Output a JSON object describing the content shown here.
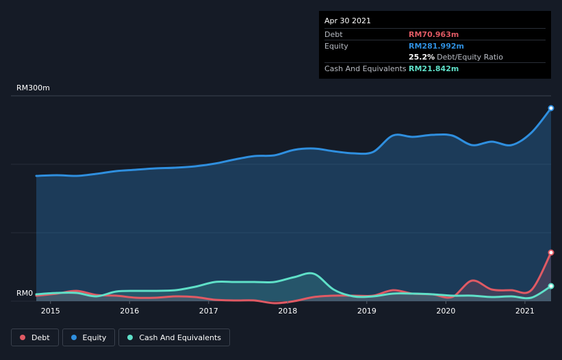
{
  "tooltip": {
    "date": "Apr 30 2021",
    "debt_label": "Debt",
    "debt_value": "RM70.963m",
    "equity_label": "Equity",
    "equity_value": "RM281.992m",
    "ratio_value": "25.2%",
    "ratio_label": "Debt/Equity Ratio",
    "cash_label": "Cash And Equivalents",
    "cash_value": "RM21.842m"
  },
  "colors": {
    "debt": "#e05a64",
    "equity": "#2f8fdf",
    "cash": "#5fe0c8"
  },
  "chart_data": {
    "type": "area",
    "title": "",
    "xlabel": "",
    "ylabel": "",
    "y_labels": {
      "top": "RM300m",
      "bottom": "RM0"
    },
    "ylim": [
      0,
      300
    ],
    "xlim": [
      2014.5,
      2021.33
    ],
    "x_ticks": [
      {
        "value": 2015,
        "label": "2015"
      },
      {
        "value": 2016,
        "label": "2016"
      },
      {
        "value": 2017,
        "label": "2017"
      },
      {
        "value": 2018,
        "label": "2018"
      },
      {
        "value": 2019,
        "label": "2019"
      },
      {
        "value": 2020,
        "label": "2020"
      },
      {
        "value": 2021,
        "label": "2021"
      }
    ],
    "grid": true,
    "legend_position": "bottom-left",
    "series": [
      {
        "name": "Equity",
        "color": "#2f8fdf",
        "points": [
          [
            2014.82,
            183
          ],
          [
            2015.08,
            184
          ],
          [
            2015.33,
            183
          ],
          [
            2015.58,
            186
          ],
          [
            2015.83,
            190
          ],
          [
            2016.08,
            192
          ],
          [
            2016.33,
            194
          ],
          [
            2016.58,
            195
          ],
          [
            2016.83,
            197
          ],
          [
            2017.08,
            201
          ],
          [
            2017.33,
            207
          ],
          [
            2017.58,
            212
          ],
          [
            2017.83,
            213
          ],
          [
            2018.08,
            221
          ],
          [
            2018.33,
            223
          ],
          [
            2018.58,
            219
          ],
          [
            2018.83,
            216
          ],
          [
            2019.08,
            218
          ],
          [
            2019.33,
            242
          ],
          [
            2019.58,
            240
          ],
          [
            2019.83,
            243
          ],
          [
            2020.08,
            242
          ],
          [
            2020.33,
            228
          ],
          [
            2020.58,
            233
          ],
          [
            2020.83,
            228
          ],
          [
            2021.08,
            246
          ],
          [
            2021.33,
            282
          ]
        ]
      },
      {
        "name": "Debt",
        "color": "#e05a64",
        "points": [
          [
            2014.82,
            8
          ],
          [
            2015.08,
            11
          ],
          [
            2015.33,
            15
          ],
          [
            2015.58,
            9
          ],
          [
            2015.83,
            8
          ],
          [
            2016.08,
            5
          ],
          [
            2016.33,
            5
          ],
          [
            2016.58,
            7
          ],
          [
            2016.83,
            6
          ],
          [
            2017.08,
            2
          ],
          [
            2017.33,
            1
          ],
          [
            2017.58,
            1
          ],
          [
            2017.83,
            -3
          ],
          [
            2018.08,
            0
          ],
          [
            2018.33,
            6
          ],
          [
            2018.58,
            8
          ],
          [
            2018.83,
            8
          ],
          [
            2019.08,
            8
          ],
          [
            2019.33,
            16
          ],
          [
            2019.58,
            11
          ],
          [
            2019.83,
            10
          ],
          [
            2020.08,
            6
          ],
          [
            2020.33,
            30
          ],
          [
            2020.58,
            17
          ],
          [
            2020.83,
            16
          ],
          [
            2021.08,
            16
          ],
          [
            2021.33,
            71
          ]
        ]
      },
      {
        "name": "Cash And Equivalents",
        "color": "#5fe0c8",
        "points": [
          [
            2014.82,
            10
          ],
          [
            2015.08,
            12
          ],
          [
            2015.33,
            12
          ],
          [
            2015.58,
            7
          ],
          [
            2015.83,
            14
          ],
          [
            2016.08,
            15
          ],
          [
            2016.33,
            15
          ],
          [
            2016.58,
            16
          ],
          [
            2016.83,
            21
          ],
          [
            2017.08,
            28
          ],
          [
            2017.33,
            28
          ],
          [
            2017.58,
            28
          ],
          [
            2017.83,
            28
          ],
          [
            2018.08,
            35
          ],
          [
            2018.33,
            40
          ],
          [
            2018.58,
            17
          ],
          [
            2018.83,
            7
          ],
          [
            2019.08,
            7
          ],
          [
            2019.33,
            11
          ],
          [
            2019.58,
            11
          ],
          [
            2019.83,
            10
          ],
          [
            2020.08,
            8
          ],
          [
            2020.33,
            8
          ],
          [
            2020.58,
            6
          ],
          [
            2020.83,
            7
          ],
          [
            2021.08,
            5
          ],
          [
            2021.33,
            22
          ]
        ]
      }
    ]
  },
  "legend": [
    {
      "label": "Debt",
      "color": "#e05a64"
    },
    {
      "label": "Equity",
      "color": "#2f8fdf"
    },
    {
      "label": "Cash And Equivalents",
      "color": "#5fe0c8"
    }
  ]
}
